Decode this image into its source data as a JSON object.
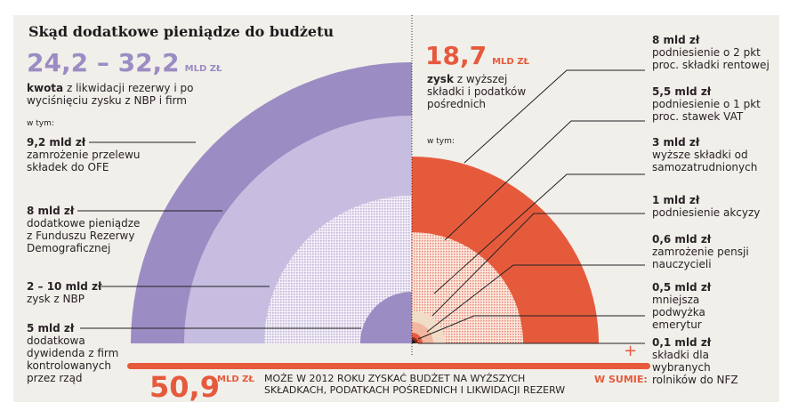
{
  "title": "Skąd dodatkowe pieniądze do budżetu",
  "left": {
    "total": "24,2 – 32,2",
    "unit": "MLD ZŁ",
    "desc_bold": "kwota",
    "desc": "z likwidacji rezerwy i po wyciśnięciu zysku z NBP i firm",
    "w_tym": "w tym:",
    "color": "#9b8cc3"
  },
  "right": {
    "total": "18,7",
    "unit": "MLD ZŁ",
    "desc_bold": "zysk",
    "desc": "z wyższej składki i podatków pośrednich",
    "w_tym": "w tym:",
    "color": "#e65a3c"
  },
  "footer": {
    "total": "50,9",
    "unit": "MLD ZŁ",
    "text": "MOŻE W 2012 ROKU ZYSKAĆ BUDŻET NA WYŻSZYCH SKŁADKACH, PODATKACH POŚREDNICH I LIKWIDACJI REZERW",
    "sum_label": "W SUMIE:",
    "plus": "+"
  },
  "chart_data": {
    "type": "semicircle-nested",
    "title": "Skąd dodatkowe pieniądze do budżetu",
    "series": [
      {
        "name": "kwota z likwidacji rezerwy i po wyciśnięciu zysku z NBP i firm",
        "total": "24,2 – 32,2 mld zł",
        "items": [
          {
            "value": "9,2 mld zł",
            "label": "zamrożenie przelewu składek do OFE"
          },
          {
            "value": "8 mld zł",
            "label": "dodatkowe pieniądze z Funduszu Rezerwy Demograficznej"
          },
          {
            "value": "2 – 10 mld zł",
            "label": "zysk z NBP"
          },
          {
            "value": "5 mld zł",
            "label": "dodatkowa dywidenda z firm kontrolowanych przez rząd"
          }
        ]
      },
      {
        "name": "zysk z wyższej składki i podatków pośrednich",
        "total": "18,7 mld zł",
        "items": [
          {
            "value": "8 mld zł",
            "label": "podniesienie o 2 pkt proc. składki rentowej"
          },
          {
            "value": "5,5 mld zł",
            "label": "podniesienie o 1 pkt proc. stawek VAT"
          },
          {
            "value": "3 mld zł",
            "label": "wyższe składki od samozatrudnionych"
          },
          {
            "value": "1 mld zł",
            "label": "podniesienie akcyzy"
          },
          {
            "value": "0,6 mld zł",
            "label": "zamrożenie pensji nauczycieli"
          },
          {
            "value": "0,5 mld zł",
            "label": "mniejsza podwyżka emerytur"
          },
          {
            "value": "0,1 mld zł",
            "label": "składki dla wybranych rolników do NFZ"
          }
        ]
      }
    ]
  }
}
